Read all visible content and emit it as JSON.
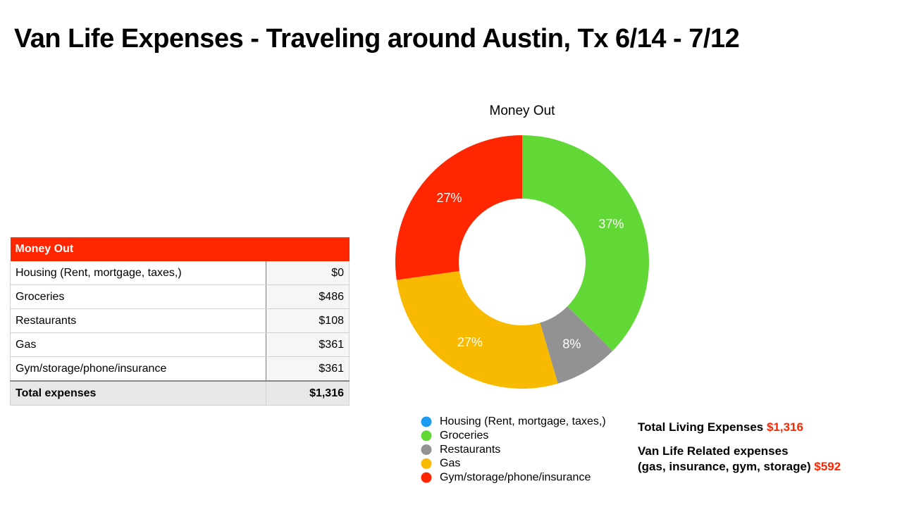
{
  "title": "Van Life Expenses - Traveling around Austin, Tx 6/14 - 7/12",
  "table": {
    "header": "Money Out",
    "rows": [
      [
        "Housing (Rent, mortgage, taxes,)",
        "$0"
      ],
      [
        "Groceries",
        "$486"
      ],
      [
        "Restaurants",
        "$108"
      ],
      [
        "Gas",
        "$361"
      ],
      [
        "Gym/storage/phone/insurance",
        "$361"
      ]
    ],
    "total": [
      "Total expenses",
      "$1,316"
    ]
  },
  "chart_data": {
    "type": "donut",
    "title": "Money Out",
    "categories": [
      "Housing (Rent, mortgage, taxes,)",
      "Groceries",
      "Restaurants",
      "Gas",
      "Gym/storage/phone/insurance"
    ],
    "values": [
      0,
      37,
      8,
      27,
      27
    ],
    "value_labels": [
      null,
      "37%",
      "8%",
      "27%",
      "27%"
    ],
    "colors": [
      "#1a9cf0",
      "#61d836",
      "#929292",
      "#f8ba00",
      "#ff2600"
    ]
  },
  "notes": [
    {
      "lines": [
        "Total Living Expenses"
      ],
      "amount": "$1,316"
    },
    {
      "lines": [
        "Van Life Related expenses",
        "(gas, insurance, gym, storage)"
      ],
      "amount": "$592"
    }
  ]
}
